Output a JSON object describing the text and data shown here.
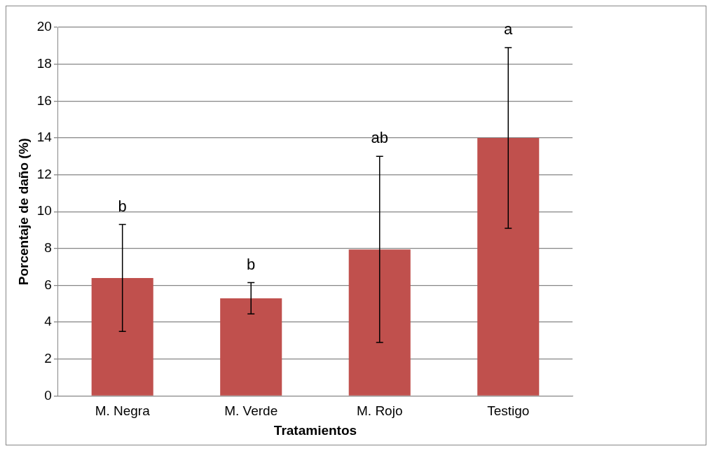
{
  "chart_data": {
    "type": "bar",
    "xlabel": "Tratamientos",
    "ylabel": "Porcentaje de daño (%)",
    "categories": [
      "M. Negra",
      "M. Verde",
      "M. Rojo",
      "Testigo"
    ],
    "values": [
      6.4,
      5.3,
      7.95,
      14.0
    ],
    "errors": [
      2.9,
      0.85,
      5.05,
      4.9
    ],
    "color": "#c0504d",
    "ylim": [
      0,
      20
    ],
    "yticks": [
      0,
      2,
      4,
      6,
      8,
      10,
      12,
      14,
      16,
      18,
      20
    ],
    "grid": "y",
    "legend": false,
    "annotations": [
      "b",
      "b",
      "ab",
      "a"
    ]
  }
}
